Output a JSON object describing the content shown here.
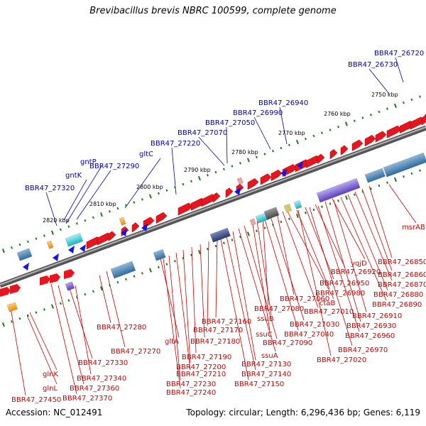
{
  "title": "Brevibacillus brevis NBRC 100599, complete genome",
  "footer": {
    "accession": "Accession: NC_012491",
    "summary": "Topology: circular; Length: 6,296,436 bp; Genes: 6,119"
  },
  "colors": {
    "forward_gene": "#e8141e",
    "reverse_gene": "#1414e6",
    "label_blue": "#0000aa",
    "label_red": "#cc0000",
    "backbone": "#808080",
    "tick": "#1a7a1a"
  },
  "kbp_marks": [
    {
      "label": "2750 kbp"
    },
    {
      "label": "2760 kbp"
    },
    {
      "label": "2770 kbp"
    },
    {
      "label": "2780 kbp"
    },
    {
      "label": "2790 kbp"
    },
    {
      "label": "2800 kbp"
    },
    {
      "label": "2810 kbp"
    },
    {
      "label": "2820 kbp"
    }
  ],
  "top_genes": [
    {
      "label": "BBR47_26720"
    },
    {
      "label": "BBR47_26730"
    },
    {
      "label": "BBR47_26940"
    },
    {
      "label": "BBR47_26990"
    },
    {
      "label": "BBR47_27050"
    },
    {
      "label": "BBR47_27070"
    },
    {
      "label": "BBR47_27220"
    },
    {
      "label": "gltC"
    },
    {
      "label": "BBR47_27290"
    },
    {
      "label": "gntP"
    },
    {
      "label": "gntK"
    },
    {
      "label": "BBR47_27320"
    }
  ],
  "bottom_genes": [
    {
      "label": "msrAB"
    },
    {
      "label": "BBR47_26850"
    },
    {
      "label": "yqjD"
    },
    {
      "label": "BBR47_26860"
    },
    {
      "label": "BBR47_26920"
    },
    {
      "label": "BBR47_26870"
    },
    {
      "label": "BBR47_26950"
    },
    {
      "label": "BBR47_26880"
    },
    {
      "label": "BBR47_26980"
    },
    {
      "label": "BBR47_26890"
    },
    {
      "label": "BBR47_27060"
    },
    {
      "label": "ctaB"
    },
    {
      "label": "BBR47_26910"
    },
    {
      "label": "BBR47_27080"
    },
    {
      "label": "BBR47_27010"
    },
    {
      "label": "BBR47_26930"
    },
    {
      "label": "BBR47_27160"
    },
    {
      "label": "ssuB"
    },
    {
      "label": "BBR47_27030"
    },
    {
      "label": "BBR47_26960"
    },
    {
      "label": "BBR47_27280"
    },
    {
      "label": "BBR47_27170"
    },
    {
      "label": "ssuC"
    },
    {
      "label": "BBR47_27040"
    },
    {
      "label": "gltA"
    },
    {
      "label": "BBR47_27180"
    },
    {
      "label": "BBR47_27090"
    },
    {
      "label": "BBR47_26970"
    },
    {
      "label": "BBR47_27270"
    },
    {
      "label": "BBR47_27330"
    },
    {
      "label": "BBR47_27190"
    },
    {
      "label": "ssuA"
    },
    {
      "label": "BBR47_27020"
    },
    {
      "label": "BBR47_27200"
    },
    {
      "label": "BBR47_27130"
    },
    {
      "label": "glnK"
    },
    {
      "label": "BBR47_27340"
    },
    {
      "label": "BBR47_27210"
    },
    {
      "label": "BBR47_27140"
    },
    {
      "label": "glnL"
    },
    {
      "label": "BBR47_27360"
    },
    {
      "label": "BBR47_27230"
    },
    {
      "label": "BBR47_27150"
    },
    {
      "label": "BBR47_27240"
    },
    {
      "label": "BBR47_27450"
    },
    {
      "label": "BBR47_27370"
    }
  ]
}
